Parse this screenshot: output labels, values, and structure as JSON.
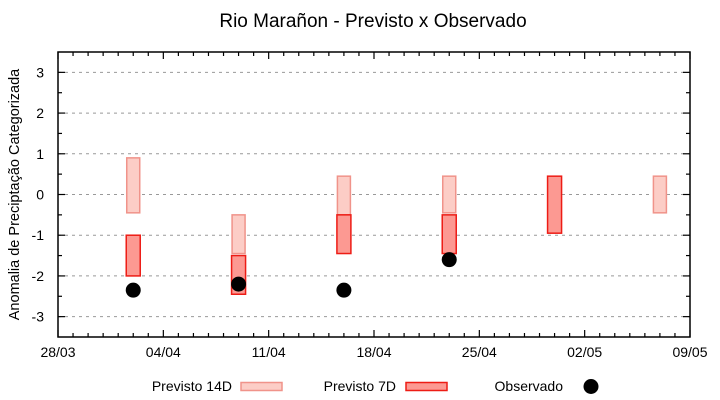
{
  "chart_data": {
    "type": "bar",
    "title": "Rio Marañon - Previsto x Observado",
    "ylabel": "Anomalia de Preciptação Categorizada",
    "xlabel": "",
    "ylim": [
      -3.5,
      3.5
    ],
    "yticks": [
      3,
      2,
      1,
      0,
      -1,
      -2,
      -3
    ],
    "y_minor_step": 0.5,
    "x_total_days": 42,
    "x_minor_step_days": 1,
    "xticks": [
      {
        "day": 0,
        "label": "28/03"
      },
      {
        "day": 7,
        "label": "04/04"
      },
      {
        "day": 14,
        "label": "11/04"
      },
      {
        "day": 21,
        "label": "18/04"
      },
      {
        "day": 28,
        "label": "25/04"
      },
      {
        "day": 35,
        "label": "02/05"
      },
      {
        "day": 42,
        "label": "09/05"
      }
    ],
    "grid": {
      "axis": "y",
      "style": "dashed",
      "color": "#999999"
    },
    "frame_color": "#000000",
    "series": [
      {
        "name": "Previsto 14D",
        "type": "range",
        "fill": "#fccdc6",
        "stroke": "#f0938a",
        "points": [
          {
            "date": "02/04",
            "day": 5,
            "low": -0.45,
            "high": 0.9
          },
          {
            "date": "09/04",
            "day": 12,
            "low": -1.45,
            "high": -0.5
          },
          {
            "date": "16/04",
            "day": 19,
            "low": -0.5,
            "high": 0.45
          },
          {
            "date": "23/04",
            "day": 26,
            "low": -0.45,
            "high": 0.45
          },
          {
            "date": "07/05",
            "day": 40,
            "low": -0.45,
            "high": 0.45
          }
        ]
      },
      {
        "name": "Previsto 7D",
        "type": "range",
        "fill": "#fc9992",
        "stroke": "#ed1c15",
        "points": [
          {
            "date": "02/04",
            "day": 5,
            "low": -2.0,
            "high": -1.0
          },
          {
            "date": "09/04",
            "day": 12,
            "low": -2.45,
            "high": -1.5
          },
          {
            "date": "16/04",
            "day": 19,
            "low": -1.45,
            "high": -0.5
          },
          {
            "date": "23/04",
            "day": 26,
            "low": -1.45,
            "high": -0.5
          },
          {
            "date": "30/04",
            "day": 33,
            "low": -0.95,
            "high": 0.45
          }
        ]
      },
      {
        "name": "Observado",
        "type": "scatter",
        "fill": "#000000",
        "points": [
          {
            "date": "02/04",
            "day": 5,
            "value": -2.35
          },
          {
            "date": "09/04",
            "day": 12,
            "value": -2.2
          },
          {
            "date": "16/04",
            "day": 19,
            "value": -2.35
          },
          {
            "date": "23/04",
            "day": 26,
            "value": -1.6
          }
        ]
      }
    ],
    "legend": [
      {
        "label": "Previsto 14D",
        "swatch": "bar",
        "fill": "#fccdc6",
        "stroke": "#f0938a"
      },
      {
        "label": "Previsto 7D",
        "swatch": "bar",
        "fill": "#fc9992",
        "stroke": "#ed1c15"
      },
      {
        "label": "Observado",
        "swatch": "dot",
        "fill": "#000000"
      }
    ],
    "legend_position": "bottom"
  }
}
